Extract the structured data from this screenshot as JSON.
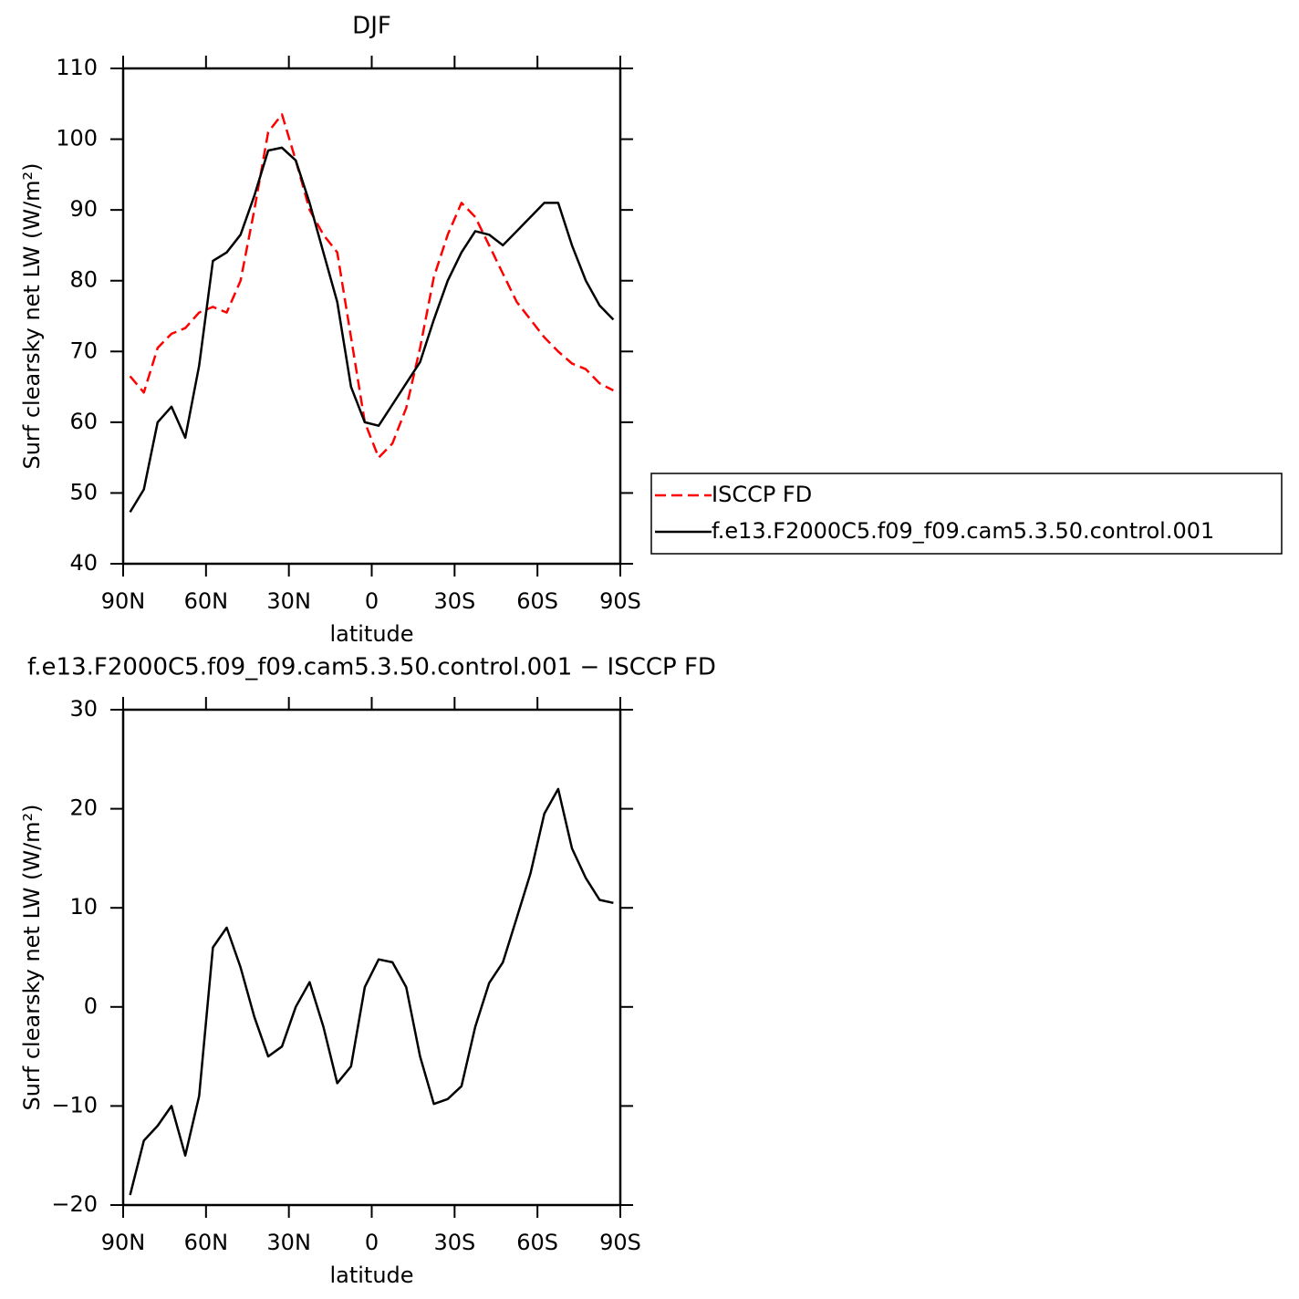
{
  "chart_data": [
    {
      "type": "line",
      "title": "DJF",
      "xlabel": "latitude",
      "ylabel": "Surf clearsky net LW (W/m²)",
      "x": [
        87.5,
        82.5,
        77.5,
        72.5,
        67.5,
        62.5,
        57.5,
        52.5,
        47.5,
        42.5,
        37.5,
        32.5,
        27.5,
        22.5,
        17.5,
        12.5,
        7.5,
        2.5,
        -2.5,
        -7.5,
        -12.5,
        -17.5,
        -22.5,
        -27.5,
        -32.5,
        -37.5,
        -42.5,
        -47.5,
        -52.5,
        -57.5,
        -62.5,
        -67.5,
        -72.5,
        -77.5,
        -82.5,
        -87.5
      ],
      "series": [
        {
          "name": "ISCCP FD",
          "color": "#ff0000",
          "dash": true,
          "values": [
            66.5,
            64.2,
            70.5,
            72.5,
            73.3,
            75.5,
            76.3,
            75.5,
            80,
            90,
            101,
            103.5,
            97,
            90,
            86.5,
            84,
            72,
            60,
            55,
            57,
            62,
            70.5,
            80.5,
            86.5,
            91,
            89,
            85,
            81,
            77,
            74.5,
            72,
            70,
            68.3,
            67.5,
            65.5,
            64.5
          ]
        },
        {
          "name": "f.e13.F2000C5.f09_f09.cam5.3.50.control.001",
          "color": "#000000",
          "dash": false,
          "values": [
            47.3,
            50.5,
            60,
            62.2,
            57.8,
            68,
            82.8,
            84,
            86.5,
            92,
            98.4,
            98.8,
            97,
            91,
            84,
            77,
            65,
            60,
            59.5,
            62.5,
            65.5,
            68.5,
            74.5,
            80,
            84,
            87,
            86.5,
            85,
            87,
            89,
            91,
            91,
            85,
            80,
            76.5,
            74.5
          ]
        }
      ],
      "xlim": [
        90,
        -90
      ],
      "ylim": [
        40,
        110
      ],
      "xticks": [
        {
          "value": 90,
          "label": "90N"
        },
        {
          "value": 60,
          "label": "60N"
        },
        {
          "value": 30,
          "label": "30N"
        },
        0,
        {
          "value": -30,
          "label": "30S"
        },
        {
          "value": -60,
          "label": "60S"
        },
        {
          "value": -90,
          "label": "90S"
        }
      ],
      "yticks": [
        40,
        50,
        60,
        70,
        80,
        90,
        100,
        110
      ],
      "legend": "right"
    },
    {
      "type": "line",
      "title": "f.e13.F2000C5.f09_f09.cam5.3.50.control.001 − ISCCP FD",
      "xlabel": "latitude",
      "ylabel": "Surf clearsky net LW (W/m²)",
      "x": [
        87.5,
        82.5,
        77.5,
        72.5,
        67.5,
        62.5,
        57.5,
        52.5,
        47.5,
        42.5,
        37.5,
        32.5,
        27.5,
        22.5,
        17.5,
        12.5,
        7.5,
        2.5,
        -2.5,
        -7.5,
        -12.5,
        -17.5,
        -22.5,
        -27.5,
        -32.5,
        -37.5,
        -42.5,
        -47.5,
        -52.5,
        -57.5,
        -62.5,
        -67.5,
        -72.5,
        -77.5,
        -82.5,
        -87.5
      ],
      "series": [
        {
          "color": "#000000",
          "dash": false,
          "values": [
            -19,
            -13.5,
            -12,
            -10,
            -15,
            -9,
            6,
            8,
            4,
            -1,
            -5,
            -4,
            0,
            2.5,
            -2,
            -7.7,
            -6,
            2,
            4.8,
            4.5,
            2,
            -5,
            -9.8,
            -9.3,
            -8,
            -2,
            2.4,
            4.5,
            9,
            13.5,
            19.5,
            22,
            16,
            13,
            10.8,
            10.5
          ]
        }
      ],
      "xlim": [
        90,
        -90
      ],
      "ylim": [
        -20,
        30
      ],
      "xticks": [
        {
          "value": 90,
          "label": "90N"
        },
        {
          "value": 60,
          "label": "60N"
        },
        {
          "value": 30,
          "label": "30N"
        },
        0,
        {
          "value": -30,
          "label": "30S"
        },
        {
          "value": -60,
          "label": "60S"
        },
        {
          "value": -90,
          "label": "90S"
        }
      ],
      "yticks": [
        {
          "value": -20,
          "label": "−20"
        },
        {
          "value": -10,
          "label": "−10"
        },
        0,
        10,
        20,
        30
      ]
    }
  ]
}
